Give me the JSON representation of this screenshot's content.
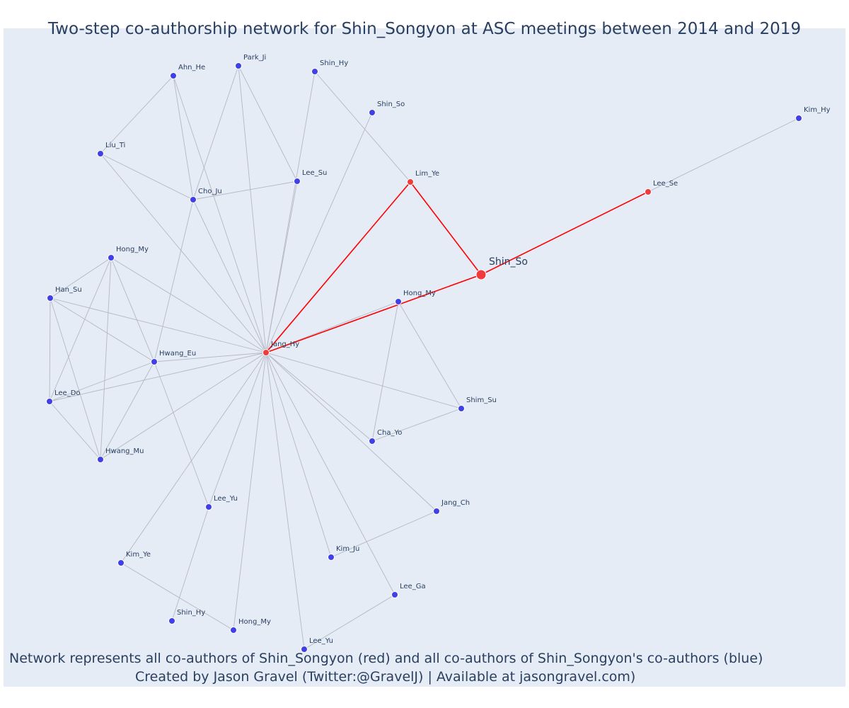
{
  "title": "Two-step co-authorship network for Shin_Songyon at ASC meetings between 2014 and 2019",
  "captions": {
    "line1": "Network represents all co-authors of Shin_Songyon (red) and all co-authors of Shin_Songyon's co-authors (blue)",
    "line2": "Created by Jason Gravel (Twitter:@GravelJ) | Available at jasongravel.com)"
  },
  "colors": {
    "background": "#e5ecf6",
    "center_node": "#ef3b3b",
    "first_degree": "#ef3b3b",
    "second_degree": "#4040e8",
    "red_edge": "#ff0000",
    "grey_edge": "#b4b8c4"
  },
  "nodes": [
    {
      "id": "shin_so_center",
      "label": "Shin_So",
      "group": "center"
    },
    {
      "id": "lim_ye",
      "label": "Lim_Ye",
      "group": "first"
    },
    {
      "id": "lee_se",
      "label": "Lee_Se",
      "group": "first"
    },
    {
      "id": "jang_hy",
      "label": "Jang_Hy",
      "group": "first"
    },
    {
      "id": "kim_hy",
      "label": "Kim_Hy",
      "group": "second"
    },
    {
      "id": "shin_hy_top",
      "label": "Shin_Hy",
      "group": "second"
    },
    {
      "id": "shin_so_top",
      "label": "Shin_So",
      "group": "second"
    },
    {
      "id": "park_ji",
      "label": "Park_Ji",
      "group": "second"
    },
    {
      "id": "ahn_he",
      "label": "Ahn_He",
      "group": "second"
    },
    {
      "id": "liu_ti",
      "label": "Liu_Ti",
      "group": "second"
    },
    {
      "id": "cho_ju",
      "label": "Cho_Ju",
      "group": "second"
    },
    {
      "id": "lee_su",
      "label": "Lee_Su",
      "group": "second"
    },
    {
      "id": "hong_my_left",
      "label": "Hong_My",
      "group": "second"
    },
    {
      "id": "han_su",
      "label": "Han_Su",
      "group": "second"
    },
    {
      "id": "hwang_eu",
      "label": "Hwang_Eu",
      "group": "second"
    },
    {
      "id": "lee_do",
      "label": "Lee_Do",
      "group": "second"
    },
    {
      "id": "hwang_mu",
      "label": "Hwang_Mu",
      "group": "second"
    },
    {
      "id": "hong_my_right",
      "label": "Hong_My",
      "group": "second"
    },
    {
      "id": "shim_su",
      "label": "Shim_Su",
      "group": "second"
    },
    {
      "id": "cha_yo",
      "label": "Cha_Yo",
      "group": "second"
    },
    {
      "id": "lee_yu_mid",
      "label": "Lee_Yu",
      "group": "second"
    },
    {
      "id": "jang_ch",
      "label": "Jang_Ch",
      "group": "second"
    },
    {
      "id": "kim_ju",
      "label": "Kim_Ju",
      "group": "second"
    },
    {
      "id": "kim_ye",
      "label": "Kim_Ye",
      "group": "second"
    },
    {
      "id": "lee_ga",
      "label": "Lee_Ga",
      "group": "second"
    },
    {
      "id": "shin_hy_bottom",
      "label": "Shin_Hy",
      "group": "second"
    },
    {
      "id": "hong_my_bottom",
      "label": "Hong_My",
      "group": "second"
    },
    {
      "id": "lee_yu_bottom",
      "label": "Lee_Yu",
      "group": "second"
    }
  ],
  "edges": [
    [
      "shin_so_center",
      "lim_ye",
      "red"
    ],
    [
      "shin_so_center",
      "lee_se",
      "red"
    ],
    [
      "shin_so_center",
      "jang_hy",
      "red"
    ],
    [
      "lim_ye",
      "jang_hy",
      "red"
    ],
    [
      "lee_se",
      "kim_hy",
      "grey"
    ],
    [
      "lim_ye",
      "shin_hy_top",
      "grey"
    ],
    [
      "jang_hy",
      "shin_hy_top",
      "grey"
    ],
    [
      "jang_hy",
      "shin_so_top",
      "grey"
    ],
    [
      "jang_hy",
      "park_ji",
      "grey"
    ],
    [
      "jang_hy",
      "ahn_he",
      "grey"
    ],
    [
      "jang_hy",
      "liu_ti",
      "grey"
    ],
    [
      "jang_hy",
      "cho_ju",
      "grey"
    ],
    [
      "jang_hy",
      "lee_su",
      "grey"
    ],
    [
      "jang_hy",
      "hong_my_left",
      "grey"
    ],
    [
      "jang_hy",
      "han_su",
      "grey"
    ],
    [
      "jang_hy",
      "hwang_eu",
      "grey"
    ],
    [
      "jang_hy",
      "lee_do",
      "grey"
    ],
    [
      "jang_hy",
      "hwang_mu",
      "grey"
    ],
    [
      "jang_hy",
      "hong_my_right",
      "grey"
    ],
    [
      "jang_hy",
      "shim_su",
      "grey"
    ],
    [
      "jang_hy",
      "cha_yo",
      "grey"
    ],
    [
      "jang_hy",
      "lee_yu_mid",
      "grey"
    ],
    [
      "jang_hy",
      "jang_ch",
      "grey"
    ],
    [
      "jang_hy",
      "kim_ju",
      "grey"
    ],
    [
      "jang_hy",
      "kim_ye",
      "grey"
    ],
    [
      "jang_hy",
      "lee_ga",
      "grey"
    ],
    [
      "jang_hy",
      "hong_my_bottom",
      "grey"
    ],
    [
      "jang_hy",
      "lee_yu_bottom",
      "grey"
    ],
    [
      "ahn_he",
      "liu_ti",
      "grey"
    ],
    [
      "ahn_he",
      "cho_ju",
      "grey"
    ],
    [
      "park_ji",
      "cho_ju",
      "grey"
    ],
    [
      "park_ji",
      "lee_su",
      "grey"
    ],
    [
      "liu_ti",
      "cho_ju",
      "grey"
    ],
    [
      "cho_ju",
      "lee_su",
      "grey"
    ],
    [
      "cho_ju",
      "hwang_eu",
      "grey"
    ],
    [
      "hong_my_left",
      "han_su",
      "grey"
    ],
    [
      "hong_my_left",
      "hwang_eu",
      "grey"
    ],
    [
      "hong_my_left",
      "lee_do",
      "grey"
    ],
    [
      "hong_my_left",
      "hwang_mu",
      "grey"
    ],
    [
      "han_su",
      "hwang_eu",
      "grey"
    ],
    [
      "han_su",
      "lee_do",
      "grey"
    ],
    [
      "han_su",
      "hwang_mu",
      "grey"
    ],
    [
      "hwang_eu",
      "lee_do",
      "grey"
    ],
    [
      "hwang_eu",
      "hwang_mu",
      "grey"
    ],
    [
      "hwang_eu",
      "lee_yu_mid",
      "grey"
    ],
    [
      "lee_do",
      "hwang_mu",
      "grey"
    ],
    [
      "hong_my_right",
      "shim_su",
      "grey"
    ],
    [
      "hong_my_right",
      "cha_yo",
      "grey"
    ],
    [
      "cha_yo",
      "shim_su",
      "grey"
    ],
    [
      "jang_ch",
      "kim_ju",
      "grey"
    ],
    [
      "lee_yu_mid",
      "shin_hy_bottom",
      "grey"
    ],
    [
      "kim_ye",
      "hong_my_bottom",
      "grey"
    ],
    [
      "lee_ga",
      "lee_yu_bottom",
      "grey"
    ]
  ]
}
